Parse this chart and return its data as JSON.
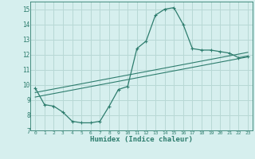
{
  "xlabel": "Humidex (Indice chaleur)",
  "ylabel": "",
  "background_color": "#d6efee",
  "grid_color": "#b8d8d5",
  "line_color": "#2e7d6e",
  "xlim": [
    -0.5,
    23.5
  ],
  "ylim": [
    7,
    15.5
  ],
  "xticks": [
    0,
    1,
    2,
    3,
    4,
    5,
    6,
    7,
    8,
    9,
    10,
    11,
    12,
    13,
    14,
    15,
    16,
    17,
    18,
    19,
    20,
    21,
    22,
    23
  ],
  "yticks": [
    7,
    8,
    9,
    10,
    11,
    12,
    13,
    14,
    15
  ],
  "line1_x": [
    0,
    1,
    2,
    3,
    4,
    5,
    6,
    7,
    8,
    9,
    10,
    11,
    12,
    13,
    14,
    15,
    16,
    17,
    18,
    19,
    20,
    21,
    22,
    23
  ],
  "line1_y": [
    9.8,
    8.7,
    8.6,
    8.2,
    7.6,
    7.5,
    7.5,
    7.6,
    8.6,
    9.7,
    9.9,
    12.4,
    12.9,
    14.6,
    15.0,
    15.1,
    14.0,
    12.4,
    12.3,
    12.3,
    12.2,
    12.1,
    11.8,
    11.9
  ],
  "line2_x": [
    0,
    23
  ],
  "line2_y": [
    9.5,
    12.15
  ],
  "line3_x": [
    0,
    23
  ],
  "line3_y": [
    9.2,
    11.85
  ]
}
